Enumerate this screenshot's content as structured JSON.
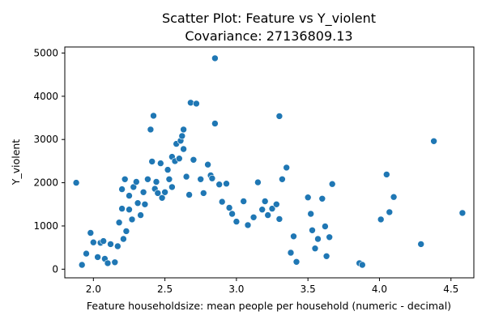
{
  "chart_data": {
    "type": "scatter",
    "title": "Scatter Plot: Feature vs Y_violent",
    "subtitle": "Covariance: 27136809.13",
    "xlabel": "Feature  householdsize: mean people per household (numeric - decimal)",
    "ylabel": "Y_violent",
    "xlim": [
      1.8,
      4.66
    ],
    "ylim": [
      -200,
      5140
    ],
    "xticks": [
      2.0,
      2.5,
      3.0,
      3.5,
      4.0,
      4.5
    ],
    "xtick_labels": [
      "2.0",
      "2.5",
      "3.0",
      "3.5",
      "4.0",
      "4.5"
    ],
    "yticks": [
      0,
      1000,
      2000,
      3000,
      4000,
      5000
    ],
    "ytick_labels": [
      "0",
      "1000",
      "2000",
      "3000",
      "4000",
      "5000"
    ],
    "grid": false,
    "legend": "none",
    "point_color": "#1f77b4",
    "points": [
      [
        1.88,
        2000
      ],
      [
        1.92,
        100
      ],
      [
        1.95,
        360
      ],
      [
        1.98,
        840
      ],
      [
        2.0,
        620
      ],
      [
        2.03,
        280
      ],
      [
        2.05,
        610
      ],
      [
        2.07,
        650
      ],
      [
        2.08,
        240
      ],
      [
        2.1,
        140
      ],
      [
        2.12,
        580
      ],
      [
        2.15,
        160
      ],
      [
        2.17,
        530
      ],
      [
        2.18,
        1080
      ],
      [
        2.2,
        1400
      ],
      [
        2.2,
        1850
      ],
      [
        2.21,
        700
      ],
      [
        2.22,
        2080
      ],
      [
        2.23,
        880
      ],
      [
        2.25,
        1700
      ],
      [
        2.25,
        1380
      ],
      [
        2.27,
        1150
      ],
      [
        2.28,
        1900
      ],
      [
        2.3,
        2020
      ],
      [
        2.31,
        1530
      ],
      [
        2.33,
        1250
      ],
      [
        2.35,
        1780
      ],
      [
        2.36,
        1500
      ],
      [
        2.38,
        2080
      ],
      [
        2.4,
        3230
      ],
      [
        2.41,
        2490
      ],
      [
        2.42,
        3550
      ],
      [
        2.43,
        1860
      ],
      [
        2.44,
        2020
      ],
      [
        2.45,
        1760
      ],
      [
        2.47,
        2450
      ],
      [
        2.48,
        1650
      ],
      [
        2.5,
        1780
      ],
      [
        2.52,
        2300
      ],
      [
        2.53,
        2080
      ],
      [
        2.55,
        2600
      ],
      [
        2.55,
        1900
      ],
      [
        2.57,
        2500
      ],
      [
        2.58,
        2900
      ],
      [
        2.6,
        2560
      ],
      [
        2.61,
        2970
      ],
      [
        2.62,
        3080
      ],
      [
        2.63,
        3230
      ],
      [
        2.63,
        2780
      ],
      [
        2.65,
        2140
      ],
      [
        2.67,
        1720
      ],
      [
        2.68,
        3850
      ],
      [
        2.7,
        2530
      ],
      [
        2.72,
        3830
      ],
      [
        2.75,
        2080
      ],
      [
        2.77,
        1760
      ],
      [
        2.8,
        2420
      ],
      [
        2.82,
        2170
      ],
      [
        2.83,
        2100
      ],
      [
        2.85,
        4880
      ],
      [
        2.85,
        3370
      ],
      [
        2.88,
        1960
      ],
      [
        2.9,
        1560
      ],
      [
        2.93,
        1980
      ],
      [
        2.95,
        1420
      ],
      [
        2.97,
        1280
      ],
      [
        3.0,
        1100
      ],
      [
        3.05,
        1570
      ],
      [
        3.08,
        1020
      ],
      [
        3.12,
        1200
      ],
      [
        3.15,
        2010
      ],
      [
        3.18,
        1380
      ],
      [
        3.2,
        1570
      ],
      [
        3.22,
        1250
      ],
      [
        3.25,
        1400
      ],
      [
        3.28,
        1500
      ],
      [
        3.3,
        3540
      ],
      [
        3.3,
        1160
      ],
      [
        3.32,
        2080
      ],
      [
        3.35,
        2350
      ],
      [
        3.38,
        380
      ],
      [
        3.4,
        760
      ],
      [
        3.42,
        170
      ],
      [
        3.5,
        1660
      ],
      [
        3.52,
        1280
      ],
      [
        3.53,
        900
      ],
      [
        3.55,
        480
      ],
      [
        3.57,
        700
      ],
      [
        3.6,
        1630
      ],
      [
        3.62,
        990
      ],
      [
        3.63,
        300
      ],
      [
        3.65,
        740
      ],
      [
        3.67,
        1970
      ],
      [
        3.86,
        140
      ],
      [
        3.88,
        100
      ],
      [
        4.01,
        1150
      ],
      [
        4.05,
        2190
      ],
      [
        4.07,
        1320
      ],
      [
        4.1,
        1670
      ],
      [
        4.29,
        580
      ],
      [
        4.38,
        2960
      ],
      [
        4.58,
        1300
      ]
    ]
  }
}
